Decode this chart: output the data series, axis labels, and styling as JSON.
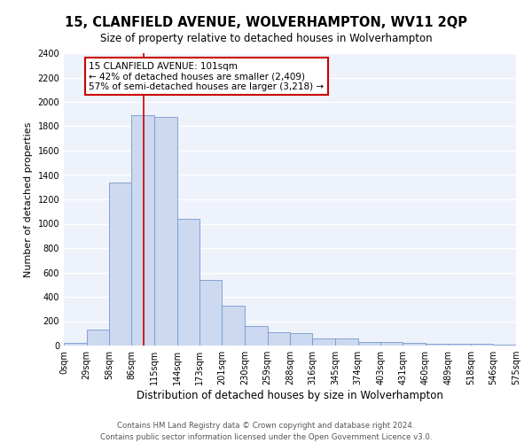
{
  "title": "15, CLANFIELD AVENUE, WOLVERHAMPTON, WV11 2QP",
  "subtitle": "Size of property relative to detached houses in Wolverhampton",
  "xlabel": "Distribution of detached houses by size in Wolverhampton",
  "ylabel": "Number of detached properties",
  "bar_color": "#ccd9f0",
  "bar_edge_color": "#7799cc",
  "bg_color": "#eef2fb",
  "grid_color": "white",
  "annotation_text": "15 CLANFIELD AVENUE: 101sqm\n← 42% of detached houses are smaller (2,409)\n57% of semi-detached houses are larger (3,218) →",
  "property_sqm": 101,
  "bins": [
    0,
    29,
    58,
    86,
    115,
    144,
    173,
    201,
    230,
    259,
    288,
    316,
    345,
    374,
    403,
    431,
    460,
    489,
    518,
    546,
    575
  ],
  "bin_labels": [
    "0sqm",
    "29sqm",
    "58sqm",
    "86sqm",
    "115sqm",
    "144sqm",
    "173sqm",
    "201sqm",
    "230sqm",
    "259sqm",
    "288sqm",
    "316sqm",
    "345sqm",
    "374sqm",
    "403sqm",
    "431sqm",
    "460sqm",
    "489sqm",
    "518sqm",
    "546sqm",
    "575sqm"
  ],
  "values": [
    20,
    130,
    1340,
    1890,
    1880,
    1040,
    540,
    330,
    160,
    110,
    100,
    55,
    55,
    32,
    30,
    20,
    18,
    15,
    15,
    5,
    20
  ],
  "ylim": [
    0,
    2400
  ],
  "yticks": [
    0,
    200,
    400,
    600,
    800,
    1000,
    1200,
    1400,
    1600,
    1800,
    2000,
    2200,
    2400
  ],
  "footer": "Contains HM Land Registry data © Crown copyright and database right 2024.\nContains public sector information licensed under the Open Government Licence v3.0.",
  "title_fontsize": 10.5,
  "subtitle_fontsize": 8.5,
  "xlabel_fontsize": 8.5,
  "ylabel_fontsize": 8,
  "tick_fontsize": 7,
  "footer_fontsize": 6.2,
  "annot_fontsize": 7.5
}
